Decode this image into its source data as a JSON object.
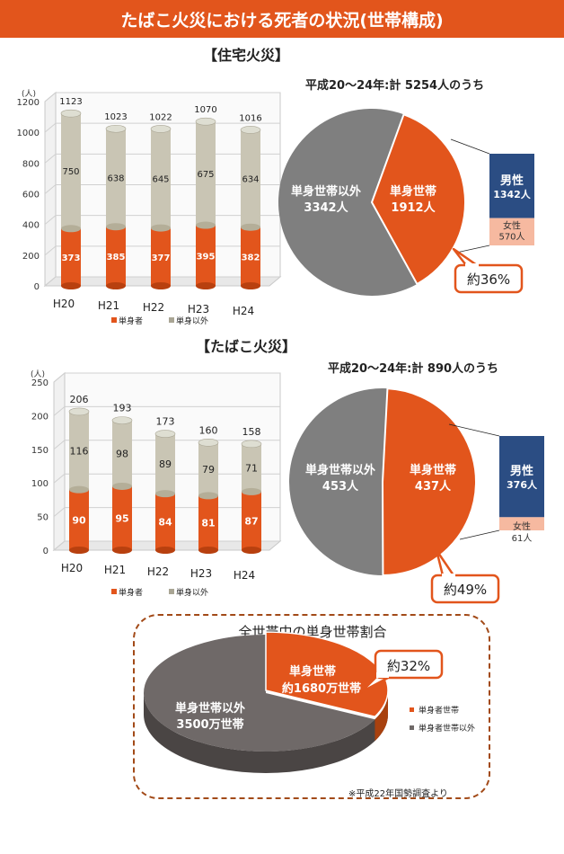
{
  "banner": {
    "title": "たばこ火災における死者の状況(世帯構成)"
  },
  "colors": {
    "single": "#e2551c",
    "other": "#c9c5b4",
    "pieOther": "#7f7f7f",
    "male": "#2b4d83",
    "female": "#f6b9a0",
    "accent": "#e2551c"
  },
  "chart_data": [
    {
      "title": "【住宅火災】",
      "type": "bar",
      "stacked": true,
      "unit_label": "(人)",
      "categories": [
        "H20",
        "H21",
        "H22",
        "H23",
        "H24"
      ],
      "series": [
        {
          "name": "単身者",
          "values": [
            373,
            385,
            377,
            395,
            382
          ]
        },
        {
          "name": "単身以外",
          "values": [
            750,
            638,
            645,
            675,
            634
          ]
        }
      ],
      "totals": [
        1123,
        1023,
        1022,
        1070,
        1016
      ],
      "ylim": [
        0,
        1200
      ],
      "yticks": [
        0,
        200,
        400,
        600,
        800,
        1000,
        1200
      ]
    },
    {
      "title": "平成20～24年:計 5254人のうち",
      "type": "pie",
      "slices": [
        {
          "label": "単身世帯以外",
          "value_label": "3342人",
          "value": 3342
        },
        {
          "label": "単身世帯",
          "value_label": "1912人",
          "value": 1912
        }
      ],
      "breakdown": [
        {
          "label": "男性",
          "value_label": "1342人",
          "value": 1342
        },
        {
          "label": "女性",
          "value_label": "570人",
          "value": 570
        }
      ],
      "callout": "約36%"
    },
    {
      "title": "【たばこ火災】",
      "type": "bar",
      "stacked": true,
      "unit_label": "(人)",
      "categories": [
        "H20",
        "H21",
        "H22",
        "H23",
        "H24"
      ],
      "series": [
        {
          "name": "単身者",
          "values": [
            90,
            95,
            84,
            81,
            87
          ]
        },
        {
          "name": "単身以外",
          "values": [
            116,
            98,
            89,
            79,
            71
          ]
        }
      ],
      "totals": [
        206,
        193,
        173,
        160,
        158
      ],
      "ylim": [
        0,
        250
      ],
      "yticks": [
        0,
        50,
        100,
        150,
        200,
        250
      ]
    },
    {
      "title": "平成20～24年:計 890人のうち",
      "type": "pie",
      "slices": [
        {
          "label": "単身世帯以外",
          "value_label": "453人",
          "value": 453
        },
        {
          "label": "単身世帯",
          "value_label": "437人",
          "value": 437
        }
      ],
      "breakdown": [
        {
          "label": "男性",
          "value_label": "376人",
          "value": 376
        },
        {
          "label": "女性",
          "value_label": "61人",
          "value": 61
        }
      ],
      "callout": "約49%"
    },
    {
      "title": "全世帯中の単身世帯割合",
      "type": "pie",
      "slices": [
        {
          "label": "単身世帯以外",
          "value_label": "3500万世帯",
          "value": 3500
        },
        {
          "label": "単身世帯",
          "value_label": "約1680万世帯",
          "value": 1680
        }
      ],
      "legend": [
        "単身者世帯",
        "単身者世帯以外"
      ],
      "callout": "約32%"
    }
  ],
  "source_note": "※平成22年国勢調査より"
}
